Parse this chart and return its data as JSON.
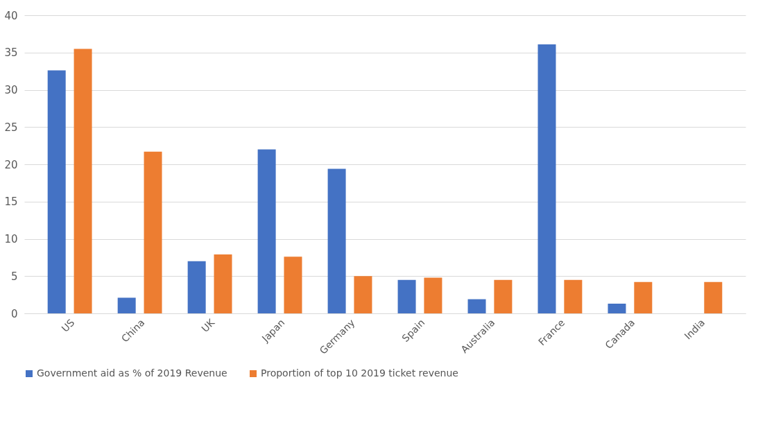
{
  "chart_data": {
    "type": "bar",
    "categories": [
      "US",
      "China",
      "UK",
      "Japan",
      "Germany",
      "Spain",
      "Australia",
      "France",
      "Canada",
      "India"
    ],
    "series": [
      {
        "name": "Government aid as % of 2019 Revenue",
        "color": "#4472c4",
        "values": [
          32.6,
          2.1,
          7.0,
          22.0,
          19.4,
          4.5,
          1.9,
          36.1,
          1.3,
          null
        ]
      },
      {
        "name": "Proportion of top 10 2019 ticket revenue",
        "color": "#ed7d31",
        "values": [
          35.5,
          21.7,
          7.9,
          7.6,
          5.0,
          4.8,
          4.5,
          4.5,
          4.2,
          4.2
        ]
      }
    ],
    "ylim": [
      0,
      40
    ],
    "yticks": [
      0,
      5,
      10,
      15,
      20,
      25,
      30,
      35,
      40
    ],
    "grid": "y",
    "legend": "bottom"
  }
}
